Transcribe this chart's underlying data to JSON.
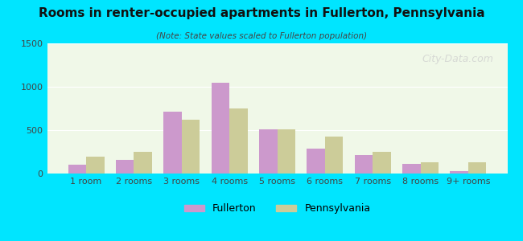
{
  "title": "Rooms in renter-occupied apartments in Fullerton, Pennsylvania",
  "subtitle": "(Note: State values scaled to Fullerton population)",
  "categories": [
    "1 room",
    "2 rooms",
    "3 rooms",
    "4 rooms",
    "5 rooms",
    "6 rooms",
    "7 rooms",
    "8 rooms",
    "9+ rooms"
  ],
  "fullerton": [
    100,
    160,
    710,
    1050,
    510,
    290,
    215,
    115,
    30
  ],
  "pennsylvania": [
    190,
    250,
    620,
    750,
    510,
    430,
    250,
    130,
    130
  ],
  "fullerton_color": "#cc99cc",
  "pennsylvania_color": "#cccc99",
  "background_outer": "#00e5ff",
  "background_inner": "#f0f8e8",
  "ylim": [
    0,
    1500
  ],
  "yticks": [
    0,
    500,
    1000,
    1500
  ],
  "bar_width": 0.38,
  "watermark": "City-Data.com",
  "legend_labels": [
    "Fullerton",
    "Pennsylvania"
  ]
}
